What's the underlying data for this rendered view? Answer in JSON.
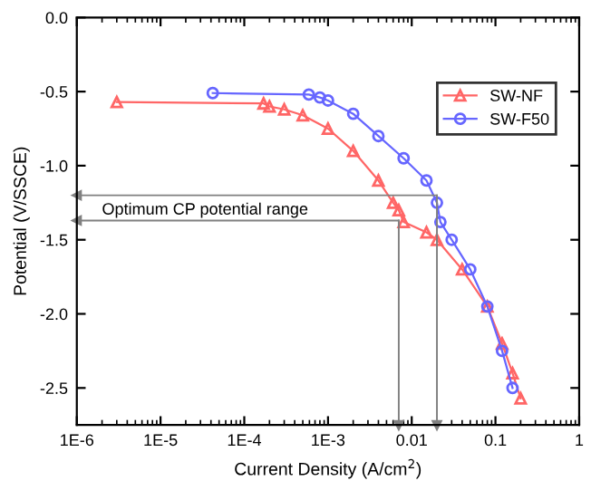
{
  "chart_data": {
    "type": "line",
    "xlabel": "Current Density (A/cm$^{2}$)",
    "ylabel": "Potential (V/SSCE)",
    "log": "x",
    "xlim": [
      1e-06,
      1
    ],
    "xticks": [
      {
        "value": 1e-06,
        "label": "1E-6"
      },
      {
        "value": 1e-05,
        "label": "1E-5"
      },
      {
        "value": 0.0001,
        "label": "1E-4"
      },
      {
        "value": 0.001,
        "label": "1E-3"
      },
      0.01,
      0.1,
      1
    ],
    "ylim": [
      -2.75,
      0
    ],
    "yticks": [
      {
        "value": -2.5,
        "label": "-2.5"
      },
      {
        "value": -2.0,
        "label": "-2.0"
      },
      {
        "value": -1.5,
        "label": "-1.5"
      },
      {
        "value": -1.0,
        "label": "-1.0"
      },
      {
        "value": -0.5,
        "label": "-0.5"
      },
      {
        "value": 0,
        "label": "0.0"
      }
    ],
    "grid": false,
    "legend": "top right",
    "series": [
      {
        "name": "SW-NF",
        "color": "#ff6666",
        "marker": "triangle",
        "x": [
          3e-06,
          0.00017,
          0.0002,
          0.0003,
          0.0005,
          0.001,
          0.002,
          0.004,
          0.006,
          0.007,
          0.008,
          0.015,
          0.02,
          0.04,
          0.08,
          0.12,
          0.16,
          0.2
        ],
        "values": [
          -0.57,
          -0.58,
          -0.6,
          -0.62,
          -0.66,
          -0.75,
          -0.9,
          -1.1,
          -1.25,
          -1.3,
          -1.38,
          -1.45,
          -1.5,
          -1.7,
          -1.95,
          -2.2,
          -2.4,
          -2.57
        ]
      },
      {
        "name": "SW-F50",
        "color": "#6666ff",
        "marker": "circle",
        "x": [
          4.2e-05,
          0.00059,
          0.0008,
          0.001,
          0.002,
          0.004,
          0.008,
          0.015,
          0.02,
          0.022,
          0.03,
          0.05,
          0.08,
          0.12,
          0.16
        ],
        "values": [
          -0.51,
          -0.52,
          -0.54,
          -0.56,
          -0.65,
          -0.8,
          -0.95,
          -1.1,
          -1.25,
          -1.38,
          -1.5,
          -1.7,
          -1.95,
          -2.25,
          -2.5
        ]
      }
    ],
    "ref_lines": [
      {
        "axis": "y",
        "value": -1.2,
        "color": "#808080"
      },
      {
        "axis": "y",
        "value": -1.37,
        "color": "#808080"
      },
      {
        "axis": "x",
        "value": 0.02,
        "color": "#808080"
      },
      {
        "axis": "x",
        "value": 0.007,
        "color": "#808080"
      }
    ],
    "annotations": [
      "Optimum CP potential range"
    ]
  }
}
